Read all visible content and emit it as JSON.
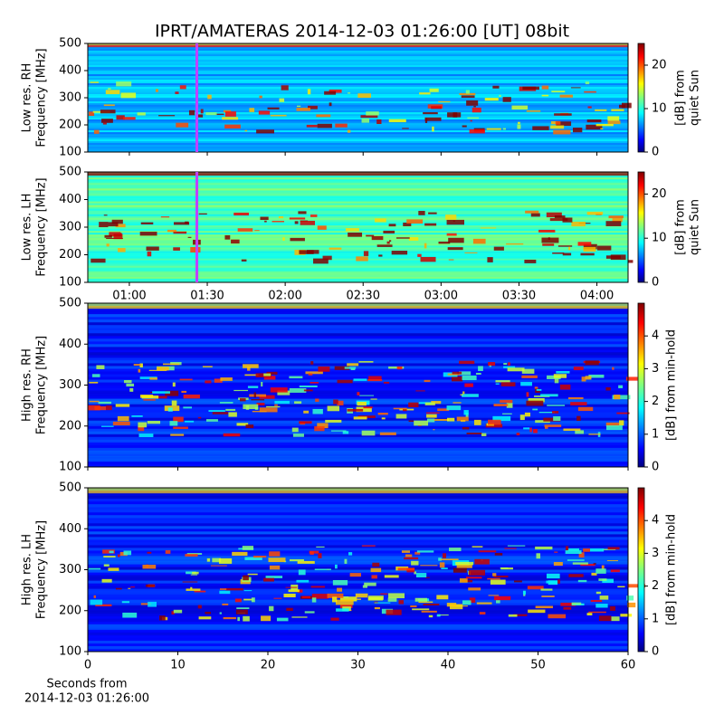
{
  "chart_data": [
    {
      "type": "heatmap",
      "title": "IPRT/AMATERAS 2014-12-03 01:26:00 [UT]   08bit",
      "ylabel": [
        "Low res. RH",
        "Frequency [MHz]"
      ],
      "ylim": [
        100,
        500
      ],
      "yticks": [
        100,
        200,
        300,
        400,
        500
      ],
      "xlim": [
        "00:44",
        "04:12"
      ],
      "xticks": [
        "01:00",
        "01:30",
        "02:00",
        "02:30",
        "03:00",
        "03:30",
        "04:00"
      ],
      "show_xtick_labels": false,
      "marker": "01:26",
      "colorbar": {
        "lim": [
          0,
          25
        ],
        "ticks": [
          0,
          10,
          20
        ],
        "label": [
          "[dB] from",
          "quiet Sun"
        ],
        "colormap": "jet"
      }
    },
    {
      "type": "heatmap",
      "ylabel": [
        "Low res. LH",
        "Frequency [MHz]"
      ],
      "ylim": [
        100,
        500
      ],
      "yticks": [
        100,
        200,
        300,
        400,
        500
      ],
      "xlim": [
        "00:44",
        "04:12"
      ],
      "xticks": [
        "01:00",
        "01:30",
        "02:00",
        "02:30",
        "03:00",
        "03:30",
        "04:00"
      ],
      "show_xtick_labels": true,
      "marker": "01:26",
      "colorbar": {
        "lim": [
          0,
          25
        ],
        "ticks": [
          0,
          10,
          20
        ],
        "label": [
          "[dB] from",
          "quiet Sun"
        ],
        "colormap": "jet"
      }
    },
    {
      "type": "heatmap",
      "ylabel": [
        "High res. RH",
        "Frequency [MHz]"
      ],
      "ylim": [
        100,
        500
      ],
      "yticks": [
        100,
        200,
        300,
        400,
        500
      ],
      "xlim": [
        0,
        60
      ],
      "xticks": [
        0,
        10,
        20,
        30,
        40,
        50,
        60
      ],
      "show_xtick_labels": false,
      "colorbar": {
        "lim": [
          0,
          5
        ],
        "ticks": [
          0,
          1,
          2,
          3,
          4
        ],
        "label": [
          "[dB] from min-hold"
        ],
        "colormap": "jet"
      }
    },
    {
      "type": "heatmap",
      "ylabel": [
        "High res. LH",
        "Frequency [MHz]"
      ],
      "ylim": [
        100,
        500
      ],
      "yticks": [
        100,
        200,
        300,
        400,
        500
      ],
      "xlim": [
        0,
        60
      ],
      "xticks": [
        0,
        10,
        20,
        30,
        40,
        50,
        60
      ],
      "show_xtick_labels": true,
      "xlabel": [
        "Seconds from",
        "2014-12-03 01:26:00"
      ],
      "colorbar": {
        "lim": [
          0,
          5
        ],
        "ticks": [
          0,
          1,
          2,
          3,
          4
        ],
        "label": [
          "[dB] from min-hold"
        ],
        "colormap": "jet"
      }
    }
  ]
}
